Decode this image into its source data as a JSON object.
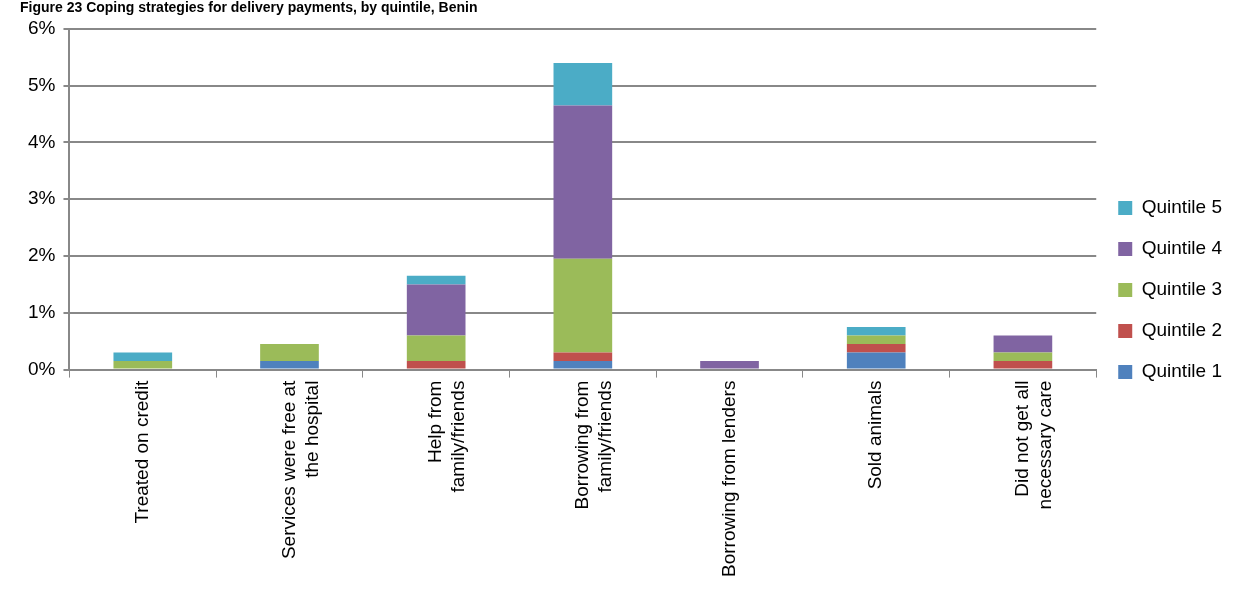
{
  "chart_data": {
    "type": "bar",
    "title": "Figure 23 Coping strategies for delivery payments, by quintile, Benin",
    "stacked": true,
    "categories": [
      "Treated on credit",
      "Services were free at the hospital",
      "Help from family/friends",
      "Borrowing from family/friends",
      "Borrowing from lenders",
      "Sold animals",
      "Did not get all necessary care"
    ],
    "series": [
      {
        "name": "Quintile 1",
        "color": "#4f81bd",
        "values": [
          0,
          0.15,
          0,
          0.15,
          0,
          0.3,
          0
        ]
      },
      {
        "name": "Quintile 2",
        "color": "#c0504d",
        "values": [
          0,
          0,
          0.15,
          0.15,
          0,
          0.15,
          0.15
        ]
      },
      {
        "name": "Quintile 3",
        "color": "#9bbb59",
        "values": [
          0.15,
          0.3,
          0.45,
          1.65,
          0,
          0.15,
          0.15
        ]
      },
      {
        "name": "Quintile 4",
        "color": "#8064a2",
        "values": [
          0,
          0,
          0.9,
          2.7,
          0.15,
          0,
          0.3
        ]
      },
      {
        "name": "Quintile 5",
        "color": "#4bacc6",
        "values": [
          0.15,
          0,
          0.15,
          0.75,
          0,
          0.15,
          0
        ]
      }
    ],
    "ylim": [
      0,
      6
    ],
    "yticks": [
      {
        "value": 0,
        "label": "0%"
      },
      {
        "value": 1,
        "label": "1%"
      },
      {
        "value": 2,
        "label": "2%"
      },
      {
        "value": 3,
        "label": "3%"
      },
      {
        "value": 4,
        "label": "4%"
      },
      {
        "value": 5,
        "label": "5%"
      },
      {
        "value": 6,
        "label": "6%"
      }
    ],
    "grid": "y",
    "legend": "right"
  }
}
